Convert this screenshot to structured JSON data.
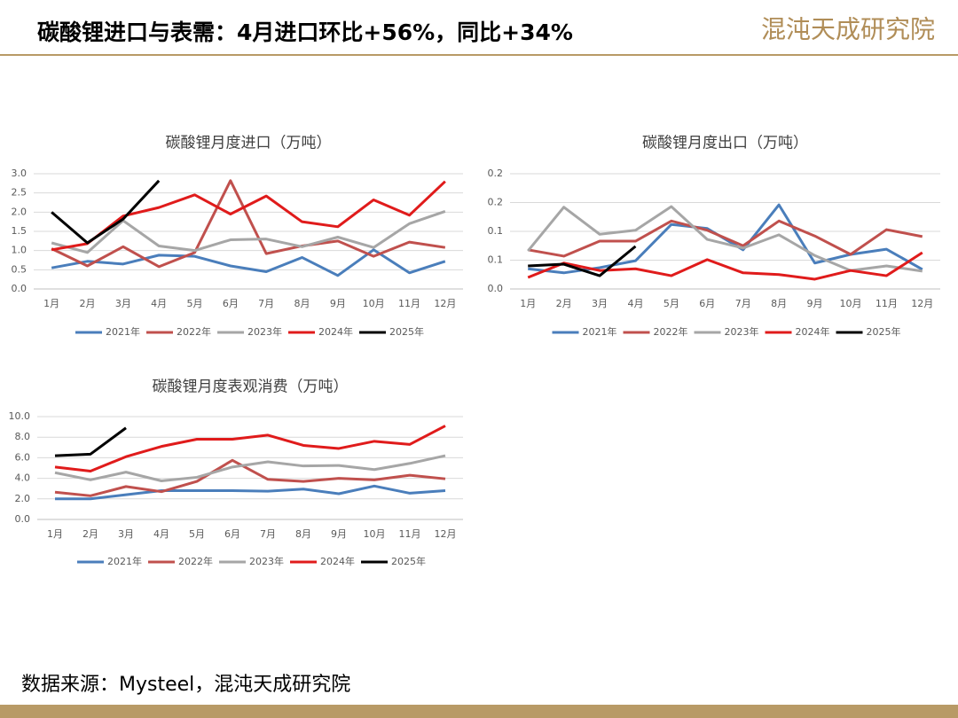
{
  "header": {
    "title": "碳酸锂进口与表需：4月进口环比+56%，同比+34%",
    "logo": "混沌天成研究院"
  },
  "source": "数据来源：Mysteel，混沌天成研究院",
  "chart_data": [
    {
      "type": "line",
      "title": "碳酸锂月度进口（万吨）",
      "categories": [
        "1月",
        "2月",
        "3月",
        "4月",
        "5月",
        "6月",
        "7月",
        "8月",
        "9月",
        "10月",
        "11月",
        "12月"
      ],
      "ylim": [
        0,
        3
      ],
      "yticks": [
        {
          "value": 0,
          "label": "0.0"
        },
        0.5,
        {
          "value": 1,
          "label": "1.0"
        },
        1.5,
        {
          "value": 2,
          "label": "2.0"
        },
        2.5,
        {
          "value": 3,
          "label": "3.0"
        }
      ],
      "grid": true,
      "legend": "bottom",
      "series": [
        {
          "name": "2021年",
          "color": "#4a7ebb",
          "values": [
            0.55,
            0.72,
            0.65,
            0.88,
            0.85,
            0.6,
            0.45,
            0.82,
            0.35,
            1.02,
            0.42,
            0.72
          ]
        },
        {
          "name": "2022年",
          "color": "#c0504d",
          "values": [
            1.05,
            0.6,
            1.1,
            0.58,
            0.95,
            2.82,
            0.92,
            1.12,
            1.25,
            0.85,
            1.22,
            1.08
          ]
        },
        {
          "name": "2023年",
          "color": "#a6a6a6",
          "values": [
            1.2,
            0.95,
            1.78,
            1.12,
            1.0,
            1.28,
            1.3,
            1.1,
            1.35,
            1.08,
            1.7,
            2.02
          ]
        },
        {
          "name": "2024年",
          "color": "#e01b1b",
          "values": [
            1.02,
            1.18,
            1.9,
            2.12,
            2.45,
            1.95,
            2.42,
            1.75,
            1.62,
            2.32,
            1.92,
            2.8
          ]
        },
        {
          "name": "2025年",
          "color": "#000000",
          "values": [
            2.0,
            1.2,
            1.82,
            2.82,
            null,
            null,
            null,
            null,
            null,
            null,
            null,
            null
          ]
        }
      ]
    },
    {
      "type": "line",
      "title": "碳酸锂月度出口（万吨）",
      "categories": [
        "1月",
        "2月",
        "3月",
        "4月",
        "5月",
        "6月",
        "7月",
        "8月",
        "9月",
        "10月",
        "11月",
        "12月"
      ],
      "ylim": [
        0,
        0.2
      ],
      "yticks": [
        {
          "value": 0,
          "label": "0.0"
        },
        {
          "value": 0.05,
          "label": "0.1"
        },
        {
          "value": 0.1,
          "label": "0.1"
        },
        {
          "value": 0.15,
          "label": "0.2"
        },
        {
          "value": 0.2,
          "label": "0.2"
        }
      ],
      "grid": true,
      "legend": "bottom",
      "series": [
        {
          "name": "2021年",
          "color": "#4a7ebb",
          "values": [
            0.035,
            0.028,
            0.037,
            0.049,
            0.112,
            0.105,
            0.068,
            0.146,
            0.045,
            0.06,
            0.069,
            0.034
          ]
        },
        {
          "name": "2022年",
          "color": "#c0504d",
          "values": [
            0.068,
            0.057,
            0.083,
            0.083,
            0.118,
            0.102,
            0.075,
            0.118,
            0.092,
            0.06,
            0.103,
            0.091
          ]
        },
        {
          "name": "2023年",
          "color": "#a6a6a6",
          "values": [
            0.066,
            0.142,
            0.095,
            0.102,
            0.143,
            0.086,
            0.071,
            0.094,
            0.058,
            0.032,
            0.04,
            0.031
          ]
        },
        {
          "name": "2024年",
          "color": "#e01b1b",
          "values": [
            0.02,
            0.045,
            0.032,
            0.035,
            0.023,
            0.051,
            0.028,
            0.025,
            0.017,
            0.032,
            0.023,
            0.063
          ]
        },
        {
          "name": "2025年",
          "color": "#000000",
          "values": [
            0.04,
            0.043,
            0.023,
            0.074,
            null,
            null,
            null,
            null,
            null,
            null,
            null,
            null
          ]
        }
      ]
    },
    {
      "type": "line",
      "title": "碳酸锂月度表观消费（万吨）",
      "categories": [
        "1月",
        "2月",
        "3月",
        "4月",
        "5月",
        "6月",
        "7月",
        "8月",
        "9月",
        "10月",
        "11月",
        "12月"
      ],
      "ylim": [
        0,
        10
      ],
      "yticks": [
        {
          "value": 0,
          "label": "0.0"
        },
        {
          "value": 2,
          "label": "2.0"
        },
        {
          "value": 4,
          "label": "4.0"
        },
        {
          "value": 6,
          "label": "6.0"
        },
        {
          "value": 8,
          "label": "8.0"
        },
        {
          "value": 10,
          "label": "10.0"
        }
      ],
      "grid": true,
      "legend": "bottom",
      "series": [
        {
          "name": "2021年",
          "color": "#4a7ebb",
          "values": [
            2.0,
            2.0,
            2.4,
            2.8,
            2.8,
            2.8,
            2.75,
            2.95,
            2.5,
            3.25,
            2.55,
            2.8
          ]
        },
        {
          "name": "2022年",
          "color": "#c0504d",
          "values": [
            2.65,
            2.3,
            3.2,
            2.7,
            3.7,
            5.75,
            3.9,
            3.7,
            4.0,
            3.85,
            4.3,
            3.95
          ]
        },
        {
          "name": "2023年",
          "color": "#a6a6a6",
          "values": [
            4.55,
            3.85,
            4.6,
            3.75,
            4.1,
            5.1,
            5.6,
            5.2,
            5.25,
            4.85,
            5.45,
            6.2
          ]
        },
        {
          "name": "2024年",
          "color": "#e01b1b",
          "values": [
            5.1,
            4.7,
            6.1,
            7.1,
            7.8,
            7.8,
            8.2,
            7.2,
            6.9,
            7.6,
            7.3,
            9.1
          ]
        },
        {
          "name": "2025年",
          "color": "#000000",
          "values": [
            6.2,
            6.35,
            8.9,
            null,
            null,
            null,
            null,
            null,
            null,
            null,
            null,
            null
          ]
        }
      ]
    }
  ]
}
